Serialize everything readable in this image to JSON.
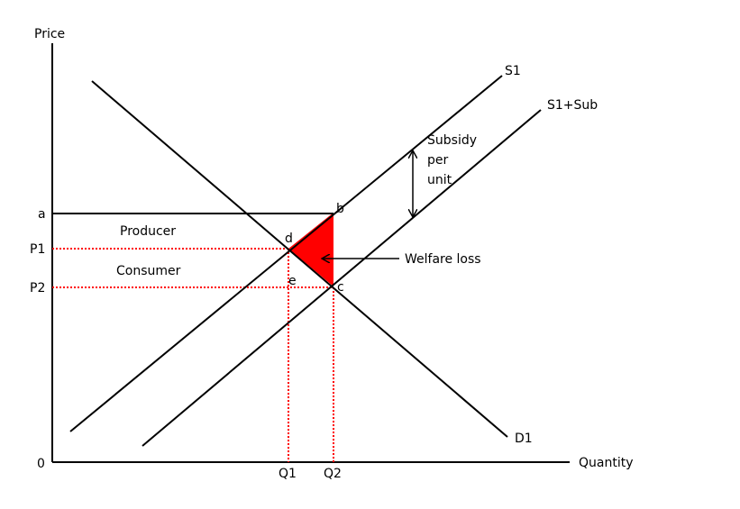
{
  "axes": {
    "y_label": "Price",
    "x_label": "Quantity",
    "origin_label": "0"
  },
  "price_labels": {
    "a": "a",
    "p1": "P1",
    "p2": "P2"
  },
  "quantity_labels": {
    "q1": "Q1",
    "q2": "Q2"
  },
  "curves": {
    "supply": "S1",
    "supply_subsidy": "S1+Sub",
    "demand": "D1"
  },
  "points": {
    "b": "b",
    "c": "c",
    "d": "d",
    "e": "e"
  },
  "areas": {
    "producer": "Producer",
    "consumer": "Consumer"
  },
  "subsidy_label": {
    "line1": "Subsidy",
    "line2": "per",
    "line3": "unit"
  },
  "welfare_loss": {
    "label": "Welfare loss",
    "fill_color": "#ff0000"
  },
  "colors": {
    "lines": "#000000",
    "guides": "#ff0000"
  }
}
